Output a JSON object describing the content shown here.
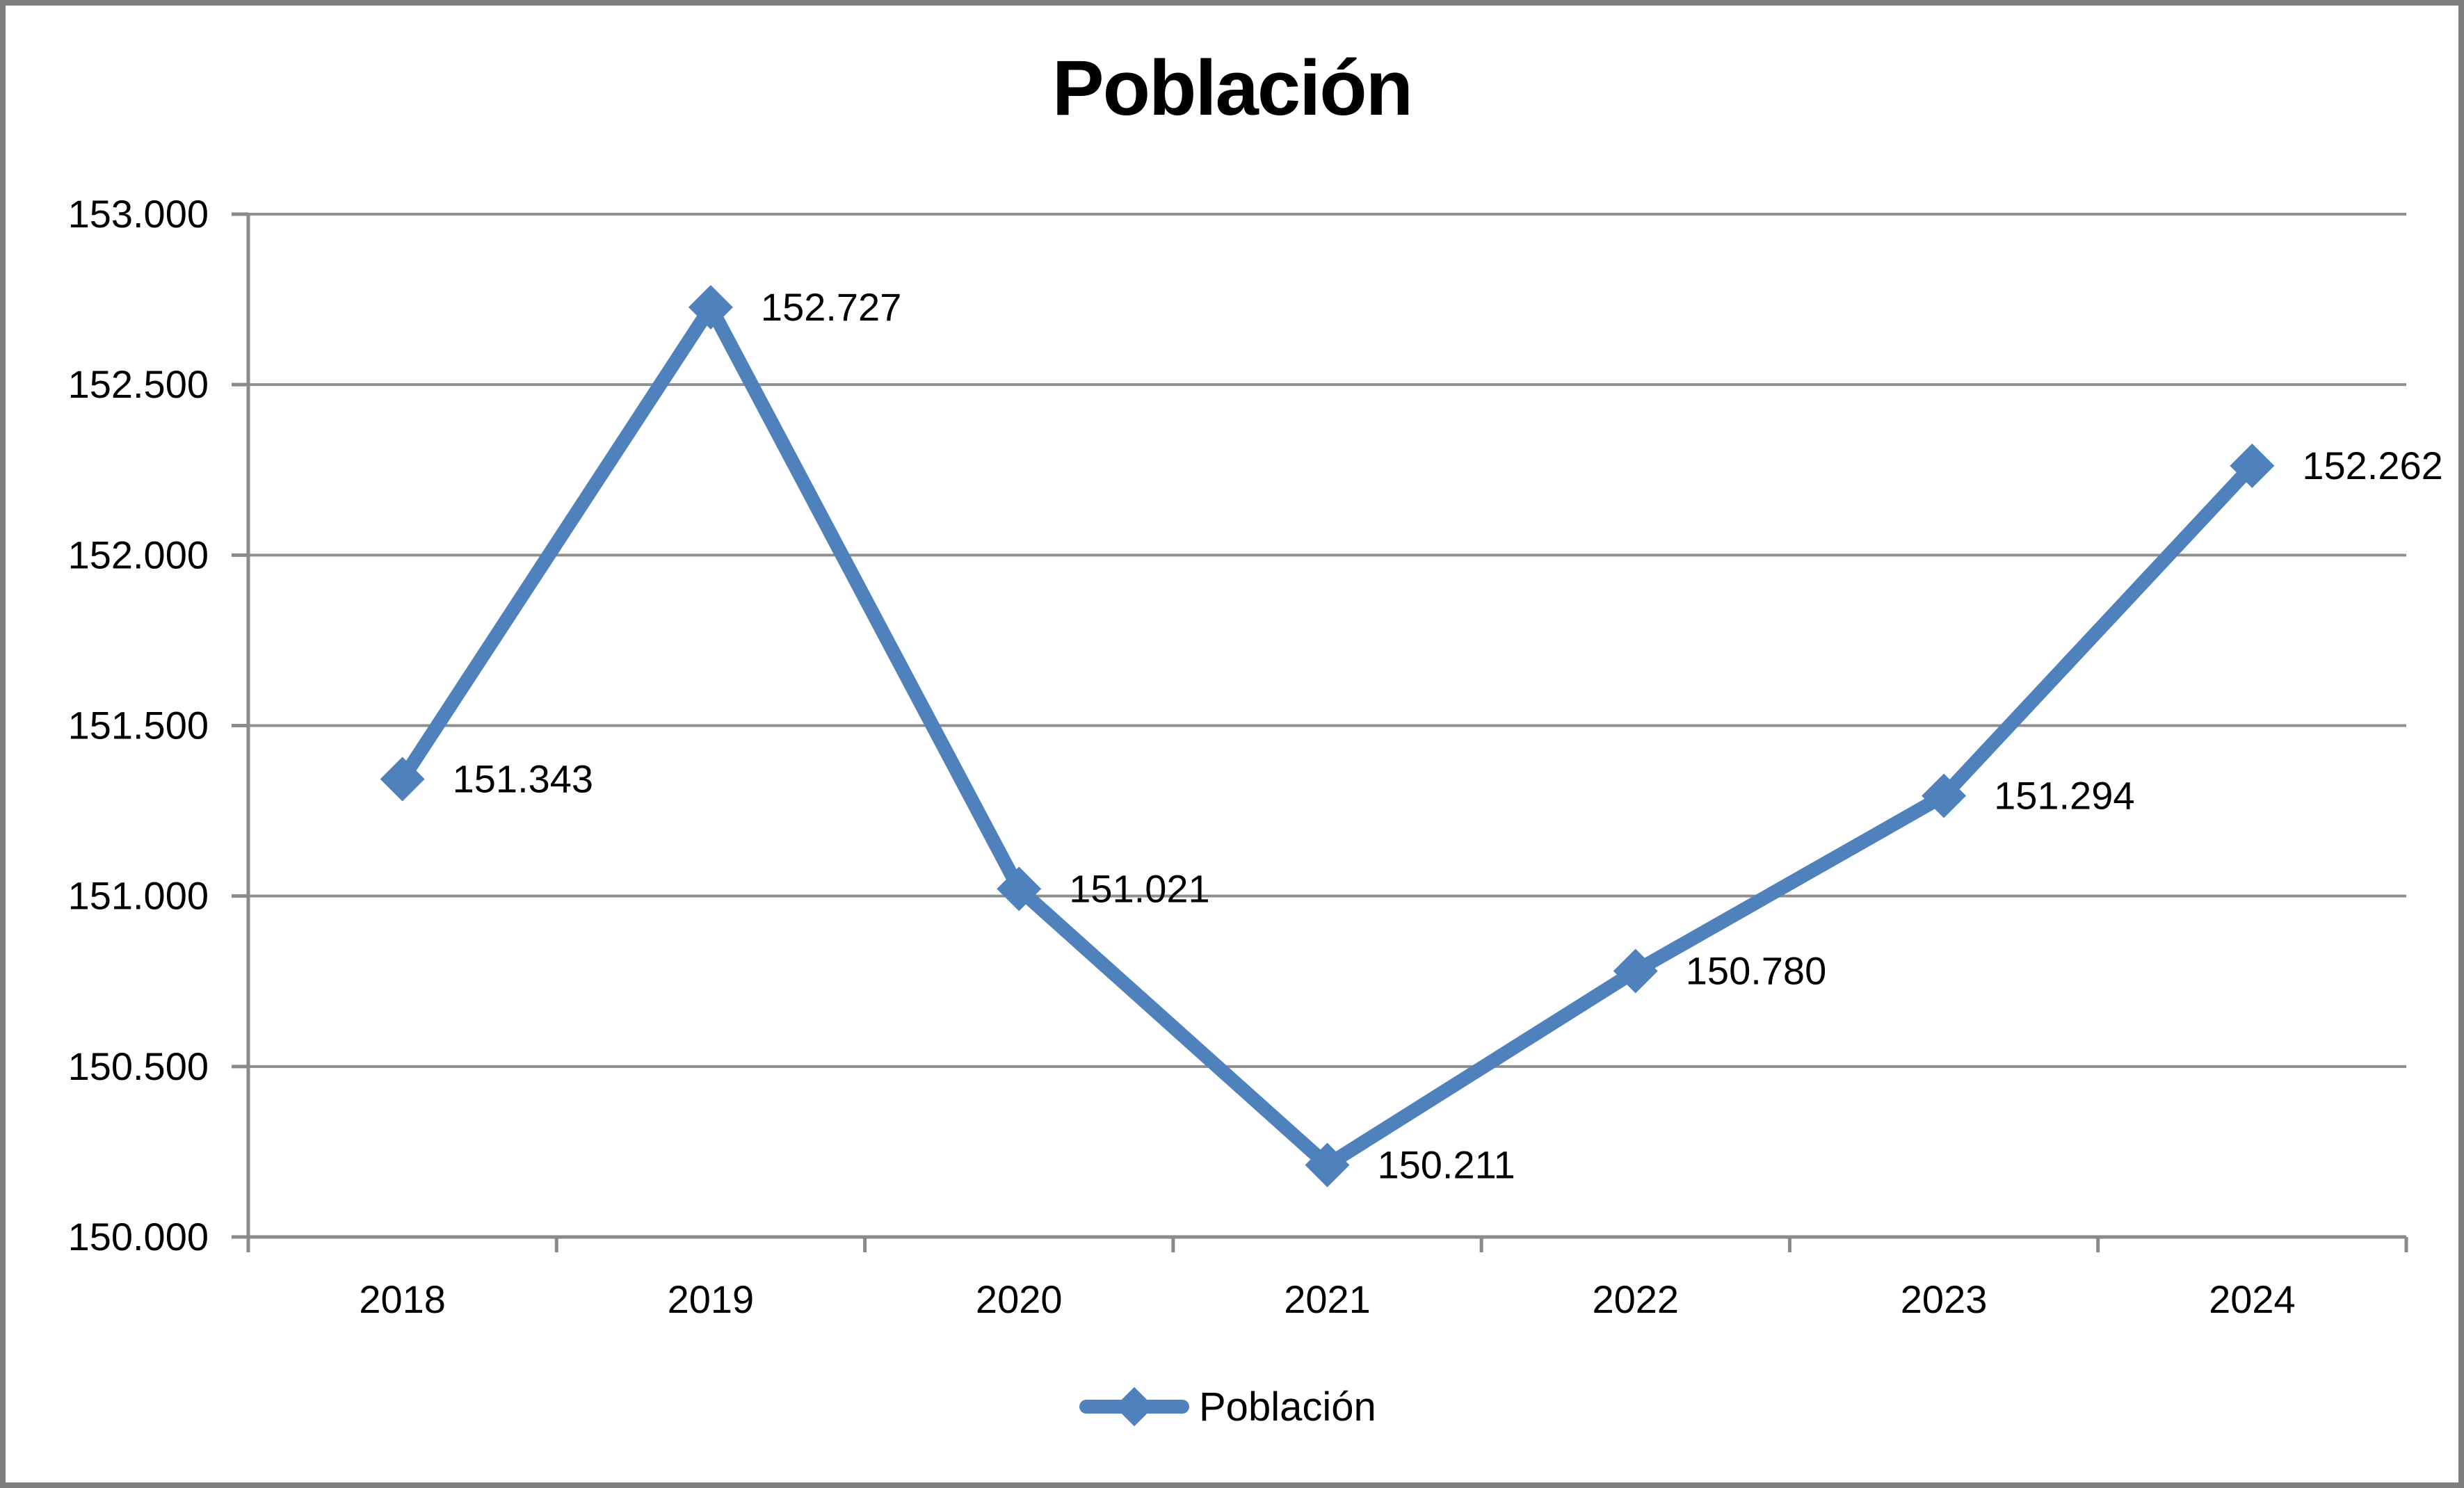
{
  "window": {
    "background": "#FFFFFF",
    "frame_border_color": "#7E7E7E"
  },
  "chart_data": {
    "type": "line",
    "title": "Población",
    "categories": [
      "2018",
      "2019",
      "2020",
      "2021",
      "2022",
      "2023",
      "2024"
    ],
    "series": [
      {
        "name": "Población",
        "color": "#4F81BD",
        "marker": "diamond",
        "values": [
          151343,
          152727,
          151021,
          150211,
          150780,
          151294,
          152262
        ],
        "point_labels": [
          "151.343",
          "152.727",
          "151.021",
          "150.211",
          "150.780",
          "151.294",
          "152.262"
        ]
      }
    ],
    "xlabel": "",
    "ylabel": "",
    "ylim": [
      150000,
      153000
    ],
    "y_tick_step": 500,
    "y_tick_labels_top_to_bottom": [
      "153.000",
      "152.500",
      "152.000",
      "151.500",
      "151.000",
      "150.500",
      "150.000"
    ],
    "grid": true,
    "gridline_color": "#8F8F8F",
    "axis_color": "#8A8A8A",
    "text_color": "#000000",
    "legend_position": "bottom",
    "legend_entries": [
      "Población"
    ]
  }
}
